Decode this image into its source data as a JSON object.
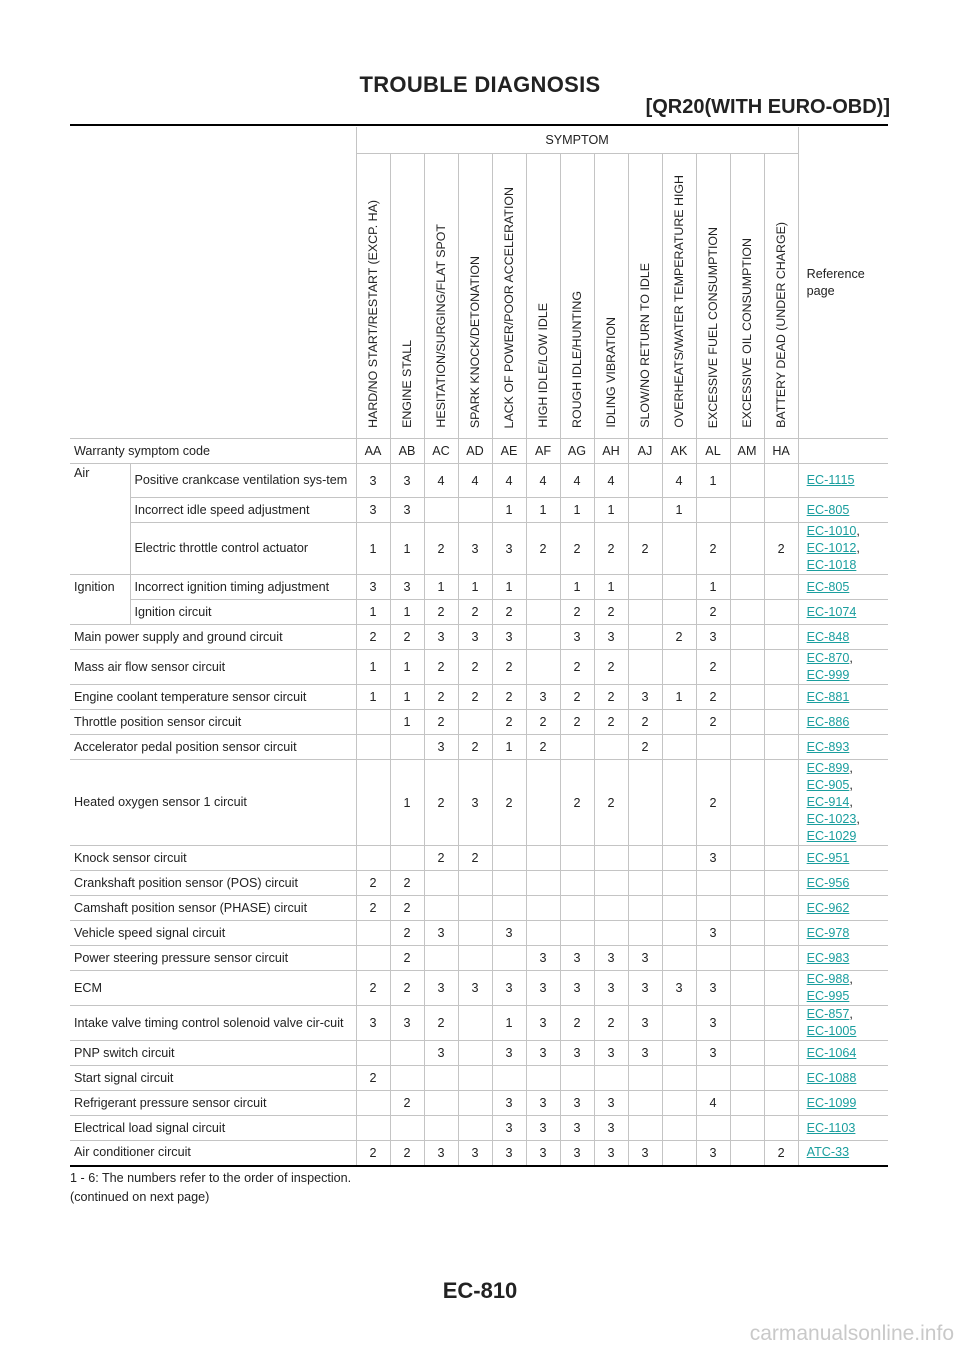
{
  "header": {
    "title": "TROUBLE DIAGNOSIS",
    "subtitle": "[QR20(WITH EURO-OBD)]"
  },
  "table": {
    "symptom_label": "SYMPTOM",
    "reference_label": "Reference page",
    "symptom_columns": [
      "HARD/NO START/RESTART (EXCP. HA)",
      "ENGINE STALL",
      "HESITATION/SURGING/FLAT SPOT",
      "SPARK KNOCK/DETONATION",
      "LACK OF POWER/POOR ACCELERATION",
      "HIGH IDLE/LOW IDLE",
      "ROUGH IDLE/HUNTING",
      "IDLING VIBRATION",
      "SLOW/NO RETURN TO IDLE",
      "OVERHEATS/WATER TEMPERATURE HIGH",
      "EXCESSIVE FUEL CONSUMPTION",
      "EXCESSIVE OIL CONSUMPTION",
      "BATTERY DEAD (UNDER CHARGE)"
    ],
    "warranty_label": "Warranty symptom code",
    "warranty_codes": [
      "AA",
      "AB",
      "AC",
      "AD",
      "AE",
      "AF",
      "AG",
      "AH",
      "AJ",
      "AK",
      "AL",
      "AM",
      "HA"
    ],
    "rows": [
      {
        "group": "Air",
        "item": "Positive crankcase ventilation sys-tem",
        "values": [
          "3",
          "3",
          "4",
          "4",
          "4",
          "4",
          "4",
          "4",
          "",
          "4",
          "1",
          "",
          ""
        ],
        "refs": [
          "EC-1115"
        ]
      },
      {
        "group": "",
        "item": "Incorrect idle speed adjustment",
        "values": [
          "3",
          "3",
          "",
          "",
          "1",
          "1",
          "1",
          "1",
          "",
          "1",
          "",
          "",
          ""
        ],
        "refs": [
          "EC-805"
        ]
      },
      {
        "group": "",
        "item": "Electric throttle control actuator",
        "values": [
          "1",
          "1",
          "2",
          "3",
          "3",
          "2",
          "2",
          "2",
          "2",
          "",
          "2",
          "",
          "2"
        ],
        "refs": [
          "EC-1010",
          "EC-1012",
          "EC-1018"
        ]
      },
      {
        "group": "Ignition",
        "item": "Incorrect ignition timing adjustment",
        "values": [
          "3",
          "3",
          "1",
          "1",
          "1",
          "",
          "1",
          "1",
          "",
          "",
          "1",
          "",
          ""
        ],
        "refs": [
          "EC-805"
        ]
      },
      {
        "group": "",
        "item": "Ignition circuit",
        "values": [
          "1",
          "1",
          "2",
          "2",
          "2",
          "",
          "2",
          "2",
          "",
          "",
          "2",
          "",
          ""
        ],
        "refs": [
          "EC-1074"
        ]
      },
      {
        "group": "",
        "item": "Main power supply and ground circuit",
        "values": [
          "2",
          "2",
          "3",
          "3",
          "3",
          "",
          "3",
          "3",
          "",
          "2",
          "3",
          "",
          ""
        ],
        "refs": [
          "EC-848"
        ]
      },
      {
        "group": "",
        "item": "Mass air flow sensor circuit",
        "values": [
          "1",
          "1",
          "2",
          "2",
          "2",
          "",
          "2",
          "2",
          "",
          "",
          "2",
          "",
          ""
        ],
        "refs": [
          "EC-870",
          "EC-999"
        ]
      },
      {
        "group": "",
        "item": "Engine coolant temperature sensor circuit",
        "values": [
          "1",
          "1",
          "2",
          "2",
          "2",
          "3",
          "2",
          "2",
          "3",
          "1",
          "2",
          "",
          ""
        ],
        "refs": [
          "EC-881"
        ]
      },
      {
        "group": "",
        "item": "Throttle position sensor circuit",
        "values": [
          "",
          "1",
          "2",
          "",
          "2",
          "2",
          "2",
          "2",
          "2",
          "",
          "2",
          "",
          ""
        ],
        "refs": [
          "EC-886"
        ]
      },
      {
        "group": "",
        "item": "Accelerator pedal position sensor circuit",
        "values": [
          "",
          "",
          "3",
          "2",
          "1",
          "2",
          "",
          "",
          "2",
          "",
          "",
          "",
          ""
        ],
        "refs": [
          "EC-893"
        ]
      },
      {
        "group": "",
        "item": "Heated oxygen sensor 1 circuit",
        "values": [
          "",
          "1",
          "2",
          "3",
          "2",
          "",
          "2",
          "2",
          "",
          "",
          "2",
          "",
          ""
        ],
        "refs": [
          "EC-899",
          "EC-905",
          "EC-914",
          "EC-1023",
          "EC-1029"
        ]
      },
      {
        "group": "",
        "item": "Knock sensor circuit",
        "values": [
          "",
          "",
          "2",
          "2",
          "",
          "",
          "",
          "",
          "",
          "",
          "3",
          "",
          ""
        ],
        "refs": [
          "EC-951"
        ]
      },
      {
        "group": "",
        "item": "Crankshaft position sensor (POS) circuit",
        "values": [
          "2",
          "2",
          "",
          "",
          "",
          "",
          "",
          "",
          "",
          "",
          "",
          "",
          ""
        ],
        "refs": [
          "EC-956"
        ]
      },
      {
        "group": "",
        "item": "Camshaft position sensor (PHASE) circuit",
        "values": [
          "2",
          "2",
          "",
          "",
          "",
          "",
          "",
          "",
          "",
          "",
          "",
          "",
          ""
        ],
        "refs": [
          "EC-962"
        ]
      },
      {
        "group": "",
        "item": "Vehicle speed signal circuit",
        "values": [
          "",
          "2",
          "3",
          "",
          "3",
          "",
          "",
          "",
          "",
          "",
          "3",
          "",
          ""
        ],
        "refs": [
          "EC-978"
        ]
      },
      {
        "group": "",
        "item": "Power steering pressure sensor circuit",
        "values": [
          "",
          "2",
          "",
          "",
          "",
          "3",
          "3",
          "3",
          "3",
          "",
          "",
          "",
          ""
        ],
        "refs": [
          "EC-983"
        ]
      },
      {
        "group": "",
        "item": "ECM",
        "values": [
          "2",
          "2",
          "3",
          "3",
          "3",
          "3",
          "3",
          "3",
          "3",
          "3",
          "3",
          "",
          ""
        ],
        "refs": [
          "EC-988",
          "EC-995"
        ]
      },
      {
        "group": "",
        "item": "Intake valve timing control solenoid valve cir-cuit",
        "values": [
          "3",
          "3",
          "2",
          "",
          "1",
          "3",
          "2",
          "2",
          "3",
          "",
          "3",
          "",
          ""
        ],
        "refs": [
          "EC-857",
          "EC-1005"
        ]
      },
      {
        "group": "",
        "item": "PNP switch circuit",
        "values": [
          "",
          "",
          "3",
          "",
          "3",
          "3",
          "3",
          "3",
          "3",
          "",
          "3",
          "",
          ""
        ],
        "refs": [
          "EC-1064"
        ]
      },
      {
        "group": "",
        "item": "Start signal circuit",
        "values": [
          "2",
          "",
          "",
          "",
          "",
          "",
          "",
          "",
          "",
          "",
          "",
          "",
          ""
        ],
        "refs": [
          "EC-1088"
        ]
      },
      {
        "group": "",
        "item": "Refrigerant pressure sensor circuit",
        "values": [
          "",
          "2",
          "",
          "",
          "3",
          "3",
          "3",
          "3",
          "",
          "",
          "4",
          "",
          ""
        ],
        "refs": [
          "EC-1099"
        ]
      },
      {
        "group": "",
        "item": "Electrical load signal circuit",
        "values": [
          "",
          "",
          "",
          "",
          "3",
          "3",
          "3",
          "3",
          "",
          "",
          "",
          "",
          ""
        ],
        "refs": [
          "EC-1103"
        ]
      },
      {
        "group": "",
        "item": "Air conditioner circuit",
        "values": [
          "2",
          "2",
          "3",
          "3",
          "3",
          "3",
          "3",
          "3",
          "3",
          "",
          "3",
          "",
          "2"
        ],
        "refs": [
          "ATC-33"
        ]
      }
    ]
  },
  "footnotes": {
    "note1": "1 - 6: The numbers refer to the order of inspection.",
    "note2": "(continued on next page)"
  },
  "page_number": "EC-810",
  "watermark": "carmanualsonline.info"
}
